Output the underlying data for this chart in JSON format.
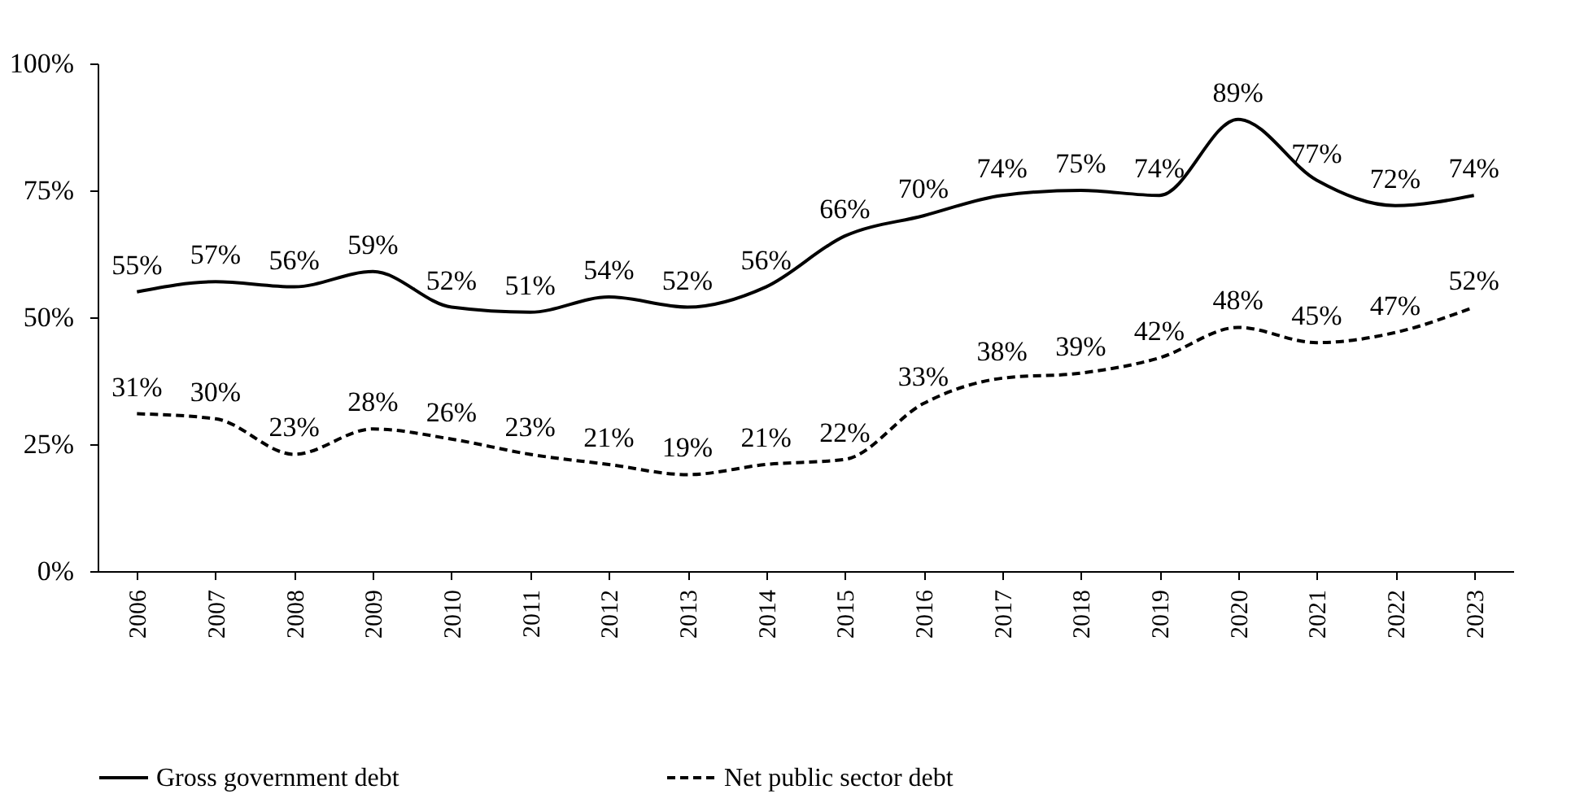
{
  "chart_data": {
    "type": "line",
    "categories": [
      "2006",
      "2007",
      "2008",
      "2009",
      "2010",
      "2011",
      "2012",
      "2013",
      "2014",
      "2015",
      "2016",
      "2017",
      "2018",
      "2019",
      "2020",
      "2021",
      "2022",
      "2023"
    ],
    "series": [
      {
        "name": "Gross government debt",
        "color": "#000000",
        "line_style": "solid",
        "values": [
          55,
          57,
          56,
          59,
          52,
          51,
          54,
          52,
          56,
          66,
          70,
          74,
          75,
          74,
          89,
          77,
          72,
          74
        ],
        "value_labels": [
          "55%",
          "57%",
          "56%",
          "59%",
          "52%",
          "51%",
          "54%",
          "52%",
          "56%",
          "66%",
          "70%",
          "74%",
          "75%",
          "74%",
          "89%",
          "77%",
          "72%",
          "74%"
        ]
      },
      {
        "name": "Net public sector debt",
        "color": "#000000",
        "line_style": "dashed",
        "values": [
          31,
          30,
          23,
          28,
          26,
          23,
          21,
          19,
          21,
          22,
          33,
          38,
          39,
          42,
          48,
          45,
          47,
          52
        ],
        "value_labels": [
          "31%",
          "30%",
          "23%",
          "28%",
          "26%",
          "23%",
          "21%",
          "19%",
          "21%",
          "22%",
          "33%",
          "38%",
          "39%",
          "42%",
          "48%",
          "45%",
          "47%",
          "52%"
        ]
      }
    ],
    "ylim": [
      0,
      100
    ],
    "yticks": [
      {
        "value": 0,
        "label": "0%"
      },
      {
        "value": 25,
        "label": "25%"
      },
      {
        "value": 50,
        "label": "50%"
      },
      {
        "value": 75,
        "label": "75%"
      },
      {
        "value": 100,
        "label": "100%"
      }
    ],
    "grid": false,
    "legend": "bottom",
    "marker": "none"
  }
}
